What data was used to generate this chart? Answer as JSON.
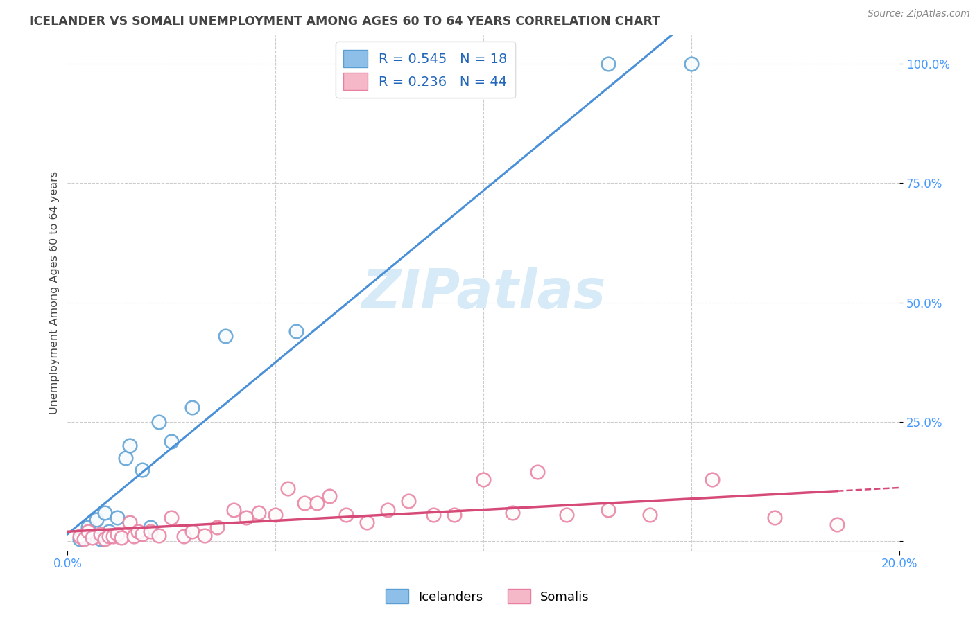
{
  "title": "ICELANDER VS SOMALI UNEMPLOYMENT AMONG AGES 60 TO 64 YEARS CORRELATION CHART",
  "source": "Source: ZipAtlas.com",
  "ylabel": "Unemployment Among Ages 60 to 64 years",
  "xlim": [
    0.0,
    0.2
  ],
  "ylim": [
    -0.02,
    1.06
  ],
  "icelanders_R": 0.545,
  "icelanders_N": 18,
  "somalis_R": 0.236,
  "somalis_N": 44,
  "icelander_color": "#8dbfe8",
  "icelander_edge_color": "#5a9fd4",
  "somali_color": "#f5b8c8",
  "somali_edge_color": "#e87fa0",
  "icelander_line_color": "#4a90d9",
  "somali_line_color": "#d64a78",
  "background_color": "#ffffff",
  "title_color": "#444444",
  "legend_R_color": "#2266bb",
  "watermark_color": "#d6eaf8",
  "grid_color": "#cccccc",
  "axis_label_color": "#4499ff",
  "icelanders_x": [
    0.003,
    0.005,
    0.007,
    0.008,
    0.009,
    0.01,
    0.012,
    0.014,
    0.015,
    0.018,
    0.02,
    0.022,
    0.025,
    0.03,
    0.038,
    0.055,
    0.13,
    0.15
  ],
  "icelanders_y": [
    0.005,
    0.03,
    0.045,
    0.005,
    0.06,
    0.02,
    0.05,
    0.175,
    0.2,
    0.15,
    0.03,
    0.25,
    0.21,
    0.28,
    0.43,
    0.44,
    1.0,
    1.0
  ],
  "somalis_x": [
    0.003,
    0.004,
    0.005,
    0.006,
    0.008,
    0.009,
    0.01,
    0.011,
    0.012,
    0.013,
    0.015,
    0.016,
    0.017,
    0.018,
    0.02,
    0.022,
    0.025,
    0.028,
    0.03,
    0.033,
    0.036,
    0.04,
    0.043,
    0.046,
    0.05,
    0.053,
    0.057,
    0.06,
    0.063,
    0.067,
    0.072,
    0.077,
    0.082,
    0.088,
    0.093,
    0.1,
    0.107,
    0.113,
    0.12,
    0.13,
    0.14,
    0.155,
    0.17,
    0.185
  ],
  "somalis_y": [
    0.01,
    0.005,
    0.02,
    0.008,
    0.015,
    0.005,
    0.01,
    0.01,
    0.015,
    0.008,
    0.04,
    0.01,
    0.02,
    0.015,
    0.02,
    0.012,
    0.05,
    0.01,
    0.02,
    0.012,
    0.03,
    0.065,
    0.05,
    0.06,
    0.055,
    0.11,
    0.08,
    0.08,
    0.095,
    0.055,
    0.04,
    0.065,
    0.085,
    0.055,
    0.055,
    0.13,
    0.06,
    0.145,
    0.055,
    0.065,
    0.055,
    0.13,
    0.05,
    0.035
  ]
}
